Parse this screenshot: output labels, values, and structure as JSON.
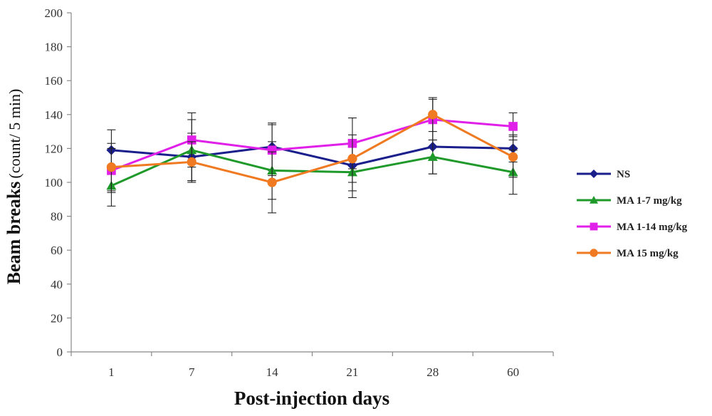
{
  "chart_data": {
    "type": "line",
    "categories": [
      "1",
      "7",
      "14",
      "21",
      "28",
      "60"
    ],
    "xlabel": "Post-injection days",
    "ylabel_bold": "Beam breaks",
    "ylabel_unit": "(count/ 5 min)",
    "ylim": [
      0,
      200
    ],
    "yticks": [
      "0",
      "20",
      "40",
      "60",
      "80",
      "100",
      "120",
      "140",
      "160",
      "180",
      "200"
    ],
    "grid": false,
    "legend_position": "right",
    "series": [
      {
        "name": "NS",
        "color": "#1a1f8c",
        "marker": "diamond",
        "values": [
          119,
          115,
          121,
          110,
          121,
          120
        ],
        "errors": [
          12,
          14,
          14,
          15,
          16,
          8
        ]
      },
      {
        "name": "MA 1-7 mg/kg",
        "color": "#1f9a2a",
        "marker": "triangle",
        "values": [
          98,
          119,
          107,
          106,
          115,
          106
        ],
        "errors": [
          12,
          18,
          17,
          15,
          10,
          13
        ]
      },
      {
        "name": "MA 1-14 mg/kg",
        "color": "#e020e8",
        "marker": "square",
        "values": [
          107,
          125,
          119,
          123,
          137,
          133
        ],
        "errors": [
          13,
          16,
          15,
          15,
          12,
          8
        ]
      },
      {
        "name": "MA 15 mg/kg",
        "color": "#ef7a22",
        "marker": "circle",
        "values": [
          109,
          112,
          100,
          114,
          140,
          115
        ],
        "errors": [
          14,
          12,
          18,
          14,
          10,
          12
        ]
      }
    ]
  }
}
